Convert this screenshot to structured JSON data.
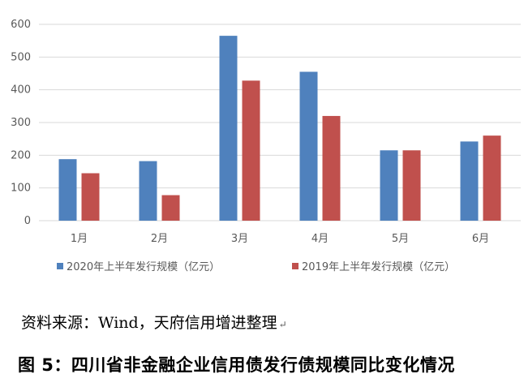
{
  "chart_data": {
    "type": "bar",
    "categories": [
      "1月",
      "2月",
      "3月",
      "4月",
      "5月",
      "6月"
    ],
    "series": [
      {
        "name": "2020年上半年发行规模（亿元）",
        "color": "#4F81BD",
        "values": [
          188,
          182,
          565,
          455,
          215,
          242
        ]
      },
      {
        "name": "2019年上半年发行规模（亿元）",
        "color": "#C0504D",
        "values": [
          145,
          78,
          428,
          320,
          215,
          260
        ]
      }
    ],
    "y_ticks": [
      0,
      100,
      200,
      300,
      400,
      500,
      600
    ],
    "ylim": [
      0,
      600
    ],
    "legend_position": "bottom",
    "grid": true
  },
  "source_text": "资料来源：Wind，天府信用增进整理",
  "return_mark": "↵",
  "caption": "图 5：四川省非金融企业信用债发行债规模同比变化情况"
}
